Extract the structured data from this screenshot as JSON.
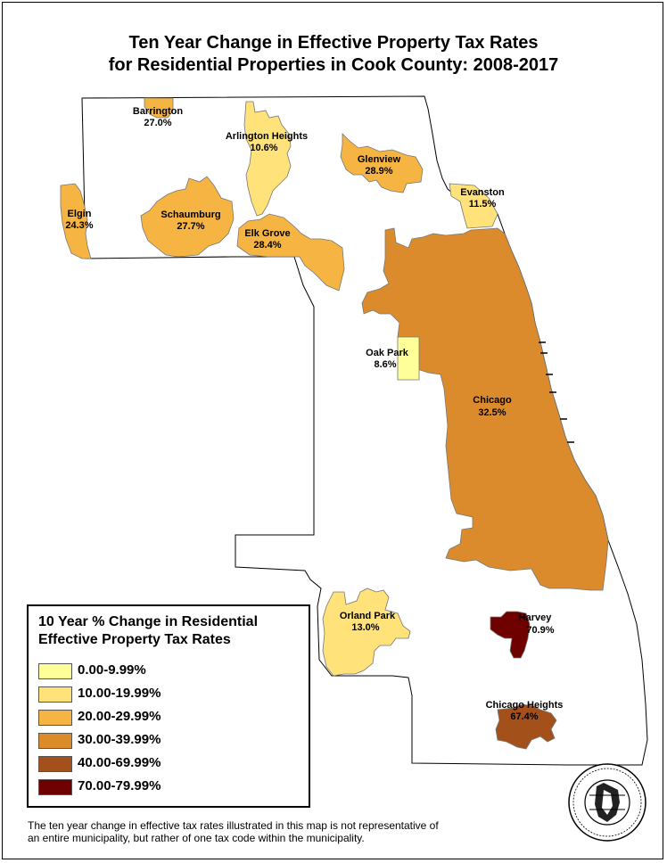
{
  "title_line1": "Ten Year Change in Effective Property Tax Rates",
  "title_line2": "for Residential Properties in Cook County: 2008-2017",
  "legend": {
    "title_line1": "10 Year % Change in Residential",
    "title_line2": "Effective Property Tax Rates",
    "classes": [
      {
        "label": "0.00-9.99%",
        "color": "#ffff99"
      },
      {
        "label": "10.00-19.99%",
        "color": "#ffe27a"
      },
      {
        "label": "20.00-29.99%",
        "color": "#f6b443"
      },
      {
        "label": "30.00-39.99%",
        "color": "#db8b2b"
      },
      {
        "label": "40.00-69.99%",
        "color": "#a3501b"
      },
      {
        "label": "70.00-79.99%",
        "color": "#6e0000"
      }
    ]
  },
  "municipalities": [
    {
      "name": "Barrington",
      "value": "27.0%",
      "class": 2
    },
    {
      "name": "Arlington Heights",
      "value": "10.6%",
      "class": 1
    },
    {
      "name": "Glenview",
      "value": "28.9%",
      "class": 2
    },
    {
      "name": "Evanston",
      "value": "11.5%",
      "class": 1
    },
    {
      "name": "Elgin",
      "value": "24.3%",
      "class": 2
    },
    {
      "name": "Schaumburg",
      "value": "27.7%",
      "class": 2
    },
    {
      "name": "Elk Grove",
      "value": "28.4%",
      "class": 2
    },
    {
      "name": "Oak Park",
      "value": "8.6%",
      "class": 0
    },
    {
      "name": "Chicago",
      "value": "32.5%",
      "class": 3
    },
    {
      "name": "Orland Park",
      "value": "13.0%",
      "class": 1
    },
    {
      "name": "Harvey",
      "value": "70.9%",
      "class": 5
    },
    {
      "name": "Chicago Heights",
      "value": "67.4%",
      "class": 4
    }
  ],
  "footnote_line1": "The ten year change in effective tax rates illustrated in this map is not representative of",
  "footnote_line2": "an entire municipality, but rather of one tax code within the municipality."
}
